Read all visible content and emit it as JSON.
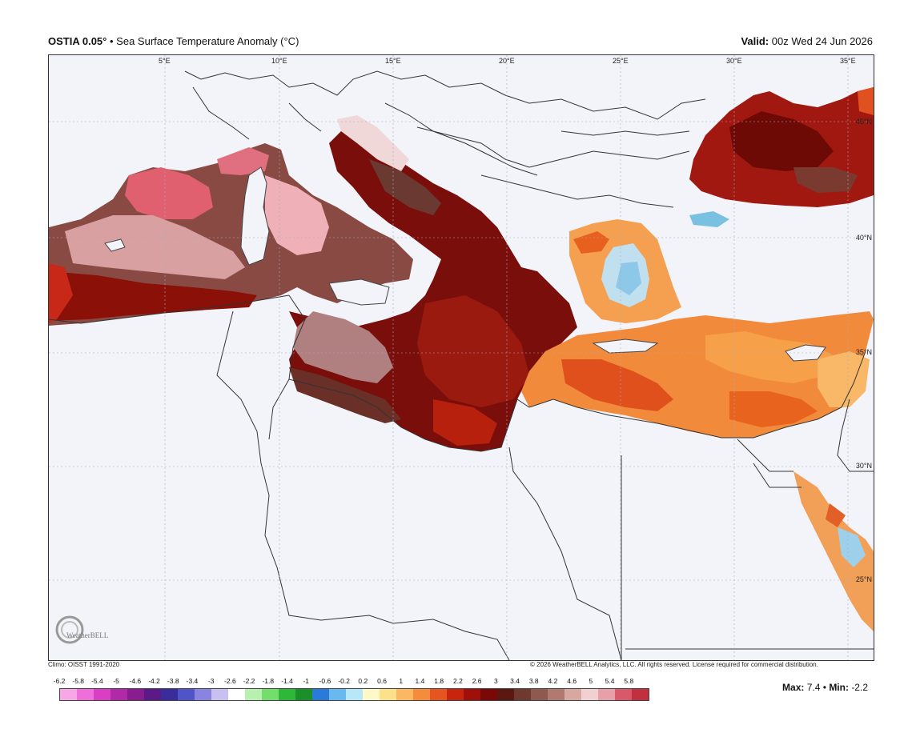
{
  "header": {
    "product": "OSTIA 0.05°",
    "bullet": "•",
    "title": "Sea Surface Temperature Anomaly (°C)",
    "valid_label": "Valid:",
    "valid_value": "00z Wed 24 Jun 2026"
  },
  "map": {
    "lon_labels": [
      "5°E",
      "10°E",
      "15°E",
      "20°E",
      "25°E",
      "30°E",
      "35°E"
    ],
    "lat_labels": [
      "45°N",
      "40°N",
      "35°N",
      "30°N",
      "25°N"
    ],
    "logo_text": "WeatherBELL"
  },
  "footer": {
    "climo": "Climo: OISST 1991-2020",
    "copyright": "© 2026 WeatherBELL Analytics, LLC. All rights reserved. License required for commercial distribution."
  },
  "colorbar": {
    "ticks": [
      "-6.2",
      "-5.8",
      "-5.4",
      "-5",
      "-4.6",
      "-4.2",
      "-3.8",
      "-3.4",
      "-3",
      "-2.6",
      "-2.2",
      "-1.8",
      "-1.4",
      "-1",
      "-0.6",
      "-0.2",
      "0.2",
      "0.6",
      "1",
      "1.4",
      "1.8",
      "2.2",
      "2.6",
      "3",
      "3.4",
      "3.8",
      "4.2",
      "4.6",
      "5",
      "5.4",
      "5.8"
    ],
    "colors": [
      "#f7a6e6",
      "#ee6fd9",
      "#d93ec4",
      "#b02aa8",
      "#8a1d8e",
      "#5b1a87",
      "#3b2c9c",
      "#4f54c8",
      "#8884e0",
      "#c8c0f0",
      "#ffffff",
      "#b8f0b0",
      "#74de6c",
      "#2eb83a",
      "#1a8f2a",
      "#2a7ad8",
      "#69b8f0",
      "#b8e8f8",
      "#fff8c8",
      "#fde08a",
      "#fbb860",
      "#f58c3c",
      "#e65520",
      "#c8240e",
      "#a0100a",
      "#7a0806",
      "#5a1810",
      "#6e3a30",
      "#8e5a50",
      "#b07a70",
      "#d8a8a0",
      "#f0d0d0",
      "#e8a0a8",
      "#d85a6a",
      "#c23040"
    ]
  },
  "stats": {
    "max_label": "Max:",
    "max_value": "7.4",
    "sep": "•",
    "min_label": "Min:",
    "min_value": "-2.2"
  }
}
